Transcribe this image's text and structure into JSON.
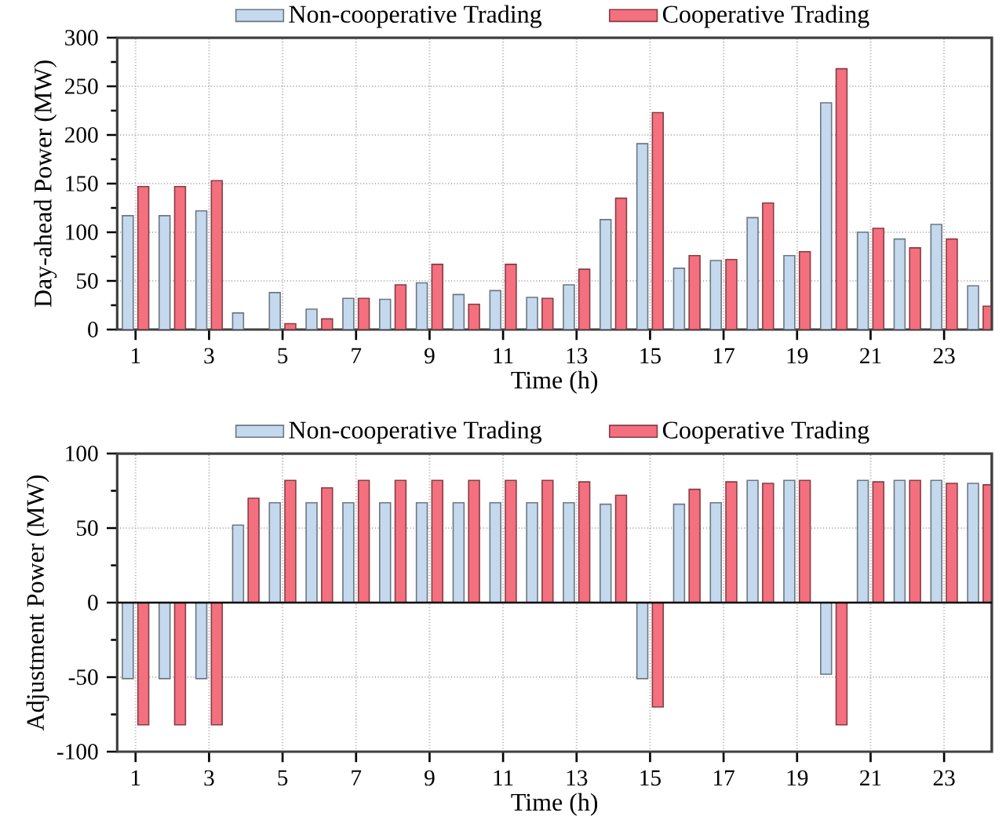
{
  "chart_data": [
    {
      "type": "bar",
      "xlabel": "Time (h)",
      "ylabel": "Day-ahead Power (MW)",
      "categories": [
        "1",
        null,
        "3",
        null,
        "5",
        null,
        "7",
        null,
        "9",
        null,
        "11",
        null,
        "13",
        null,
        "15",
        null,
        "17",
        null,
        "19",
        null,
        "21",
        null,
        "23",
        null
      ],
      "series": [
        {
          "name": "Non-cooperative Trading",
          "color": "#c5d9ee",
          "values": [
            117,
            117,
            122,
            17,
            38,
            21,
            32,
            31,
            48,
            36,
            40,
            33,
            46,
            113,
            191,
            63,
            71,
            115,
            76,
            233,
            100,
            93,
            108,
            45
          ]
        },
        {
          "name": "Cooperative Trading",
          "color": "#f4707f",
          "values": [
            147,
            147,
            153,
            null,
            6,
            11,
            32,
            46,
            67,
            26,
            67,
            32,
            62,
            135,
            223,
            76,
            72,
            130,
            80,
            268,
            104,
            84,
            93,
            24
          ]
        }
      ],
      "ylim": [
        0,
        300
      ],
      "yticks": [
        0,
        50,
        100,
        150,
        200,
        250,
        300
      ],
      "grid": true,
      "legend": "top"
    },
    {
      "type": "bar",
      "xlabel": "Time (h)",
      "ylabel": "Adjustment Power (MW)",
      "categories": [
        "1",
        null,
        "3",
        null,
        "5",
        null,
        "7",
        null,
        "9",
        null,
        "11",
        null,
        "13",
        null,
        "15",
        null,
        "17",
        null,
        "19",
        null,
        "21",
        null,
        "23",
        null
      ],
      "series": [
        {
          "name": "Non-cooperative Trading",
          "color": "#c5d9ee",
          "values": [
            -51,
            -51,
            -51,
            52,
            67,
            67,
            67,
            67,
            67,
            67,
            67,
            67,
            67,
            66,
            -51,
            66,
            67,
            82,
            82,
            -48,
            82,
            82,
            82,
            80
          ]
        },
        {
          "name": "Cooperative Trading",
          "color": "#f4707f",
          "values": [
            -82,
            -82,
            -82,
            70,
            82,
            77,
            82,
            82,
            82,
            82,
            82,
            82,
            81,
            72,
            -70,
            76,
            81,
            80,
            82,
            -82,
            81,
            82,
            80,
            79
          ]
        }
      ],
      "ylim": [
        -100,
        100
      ],
      "yticks": [
        -100,
        -50,
        0,
        50,
        100
      ],
      "grid": true,
      "legend": "top"
    }
  ]
}
